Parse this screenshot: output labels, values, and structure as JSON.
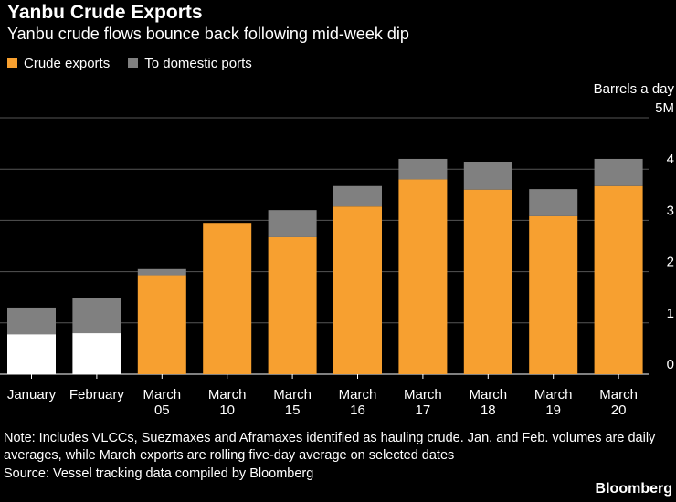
{
  "title": "Yanbu Crude Exports",
  "subtitle": "Yanbu crude flows bounce back following mid-week dip",
  "legend": {
    "crude": "Crude exports",
    "domestic": "To domestic ports"
  },
  "colors": {
    "crude": "#f7a030",
    "domestic": "#808080",
    "crude_avg": "#ffffff",
    "grid": "#555555",
    "text": "#ffffff",
    "background": "#000000"
  },
  "note": "Note: Includes VLCCs, Suezmaxes and Aframaxes identified as hauling crude. Jan. and Feb. volumes are daily averages, while March exports are rolling five-day average on selected dates",
  "source": "Source: Vessel tracking data compiled by Bloomberg",
  "brand": "Bloomberg",
  "chart_data": {
    "type": "bar",
    "stacked": true,
    "title": "Yanbu Crude Exports",
    "subtitle": "Yanbu crude flows bounce back following mid-week dip",
    "ylabel": "Barrels a day",
    "ylim": [
      0,
      5
    ],
    "yticks": [
      "0",
      "1",
      "2",
      "3",
      "4",
      "5M"
    ],
    "grid": true,
    "legend_position": "top-left",
    "categories": [
      [
        "January"
      ],
      [
        "February"
      ],
      [
        "March",
        "05"
      ],
      [
        "March",
        "10"
      ],
      [
        "March",
        "15"
      ],
      [
        "March",
        "16"
      ],
      [
        "March",
        "17"
      ],
      [
        "March",
        "18"
      ],
      [
        "March",
        "19"
      ],
      [
        "March",
        "20"
      ]
    ],
    "series": [
      {
        "name": "Crude exports",
        "values": [
          0.78,
          0.8,
          1.93,
          2.95,
          2.67,
          3.27,
          3.8,
          3.6,
          3.08,
          3.67
        ]
      },
      {
        "name": "To domestic ports",
        "values": [
          0.52,
          0.68,
          0.12,
          0.0,
          0.53,
          0.4,
          0.4,
          0.53,
          0.53,
          0.53
        ]
      }
    ]
  }
}
